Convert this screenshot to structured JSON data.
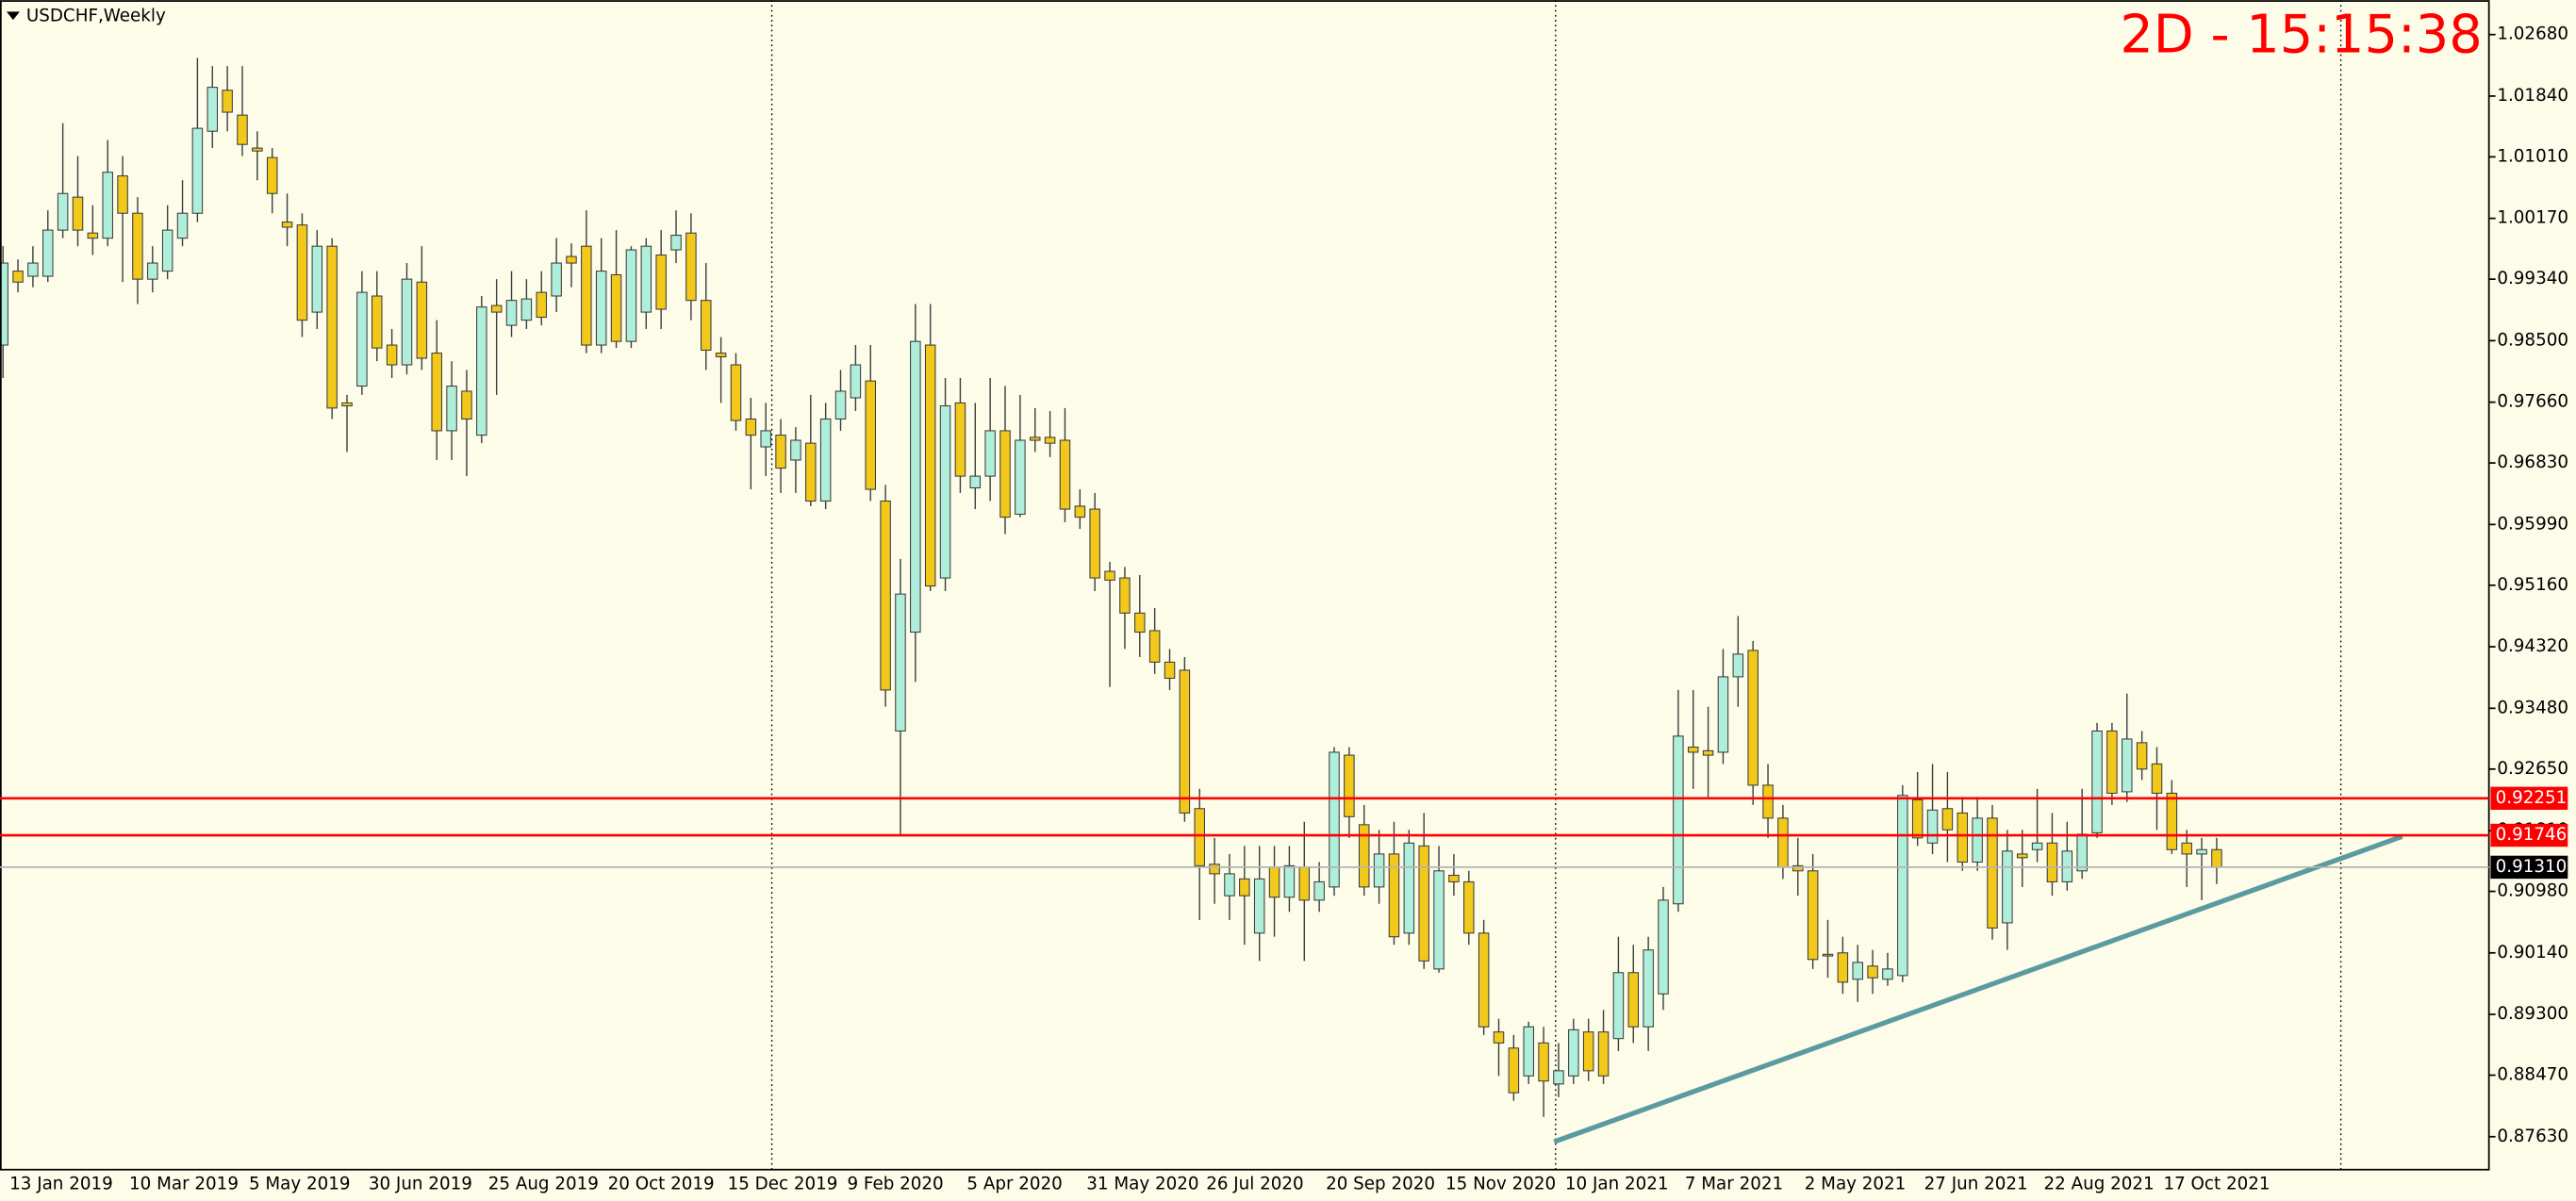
{
  "chart_data": {
    "type": "candlestick",
    "title": "USDCHF,Weekly",
    "timer": "2D - 15:15:38",
    "categories": [
      "13 Jan 2019",
      null,
      null,
      null,
      null,
      null,
      null,
      null,
      "10 Mar 2019",
      null,
      null,
      null,
      null,
      null,
      null,
      null,
      "5 May 2019",
      null,
      null,
      null,
      null,
      null,
      null,
      null,
      "30 Jun 2019",
      null,
      null,
      null,
      null,
      null,
      null,
      null,
      "25 Aug 2019",
      null,
      null,
      null,
      null,
      null,
      null,
      null,
      "20 Oct 2019",
      null,
      null,
      null,
      null,
      null,
      null,
      null,
      "15 Dec 2019",
      null,
      null,
      null,
      null,
      null,
      null,
      null,
      "9 Feb 2020",
      null,
      null,
      null,
      null,
      null,
      null,
      null,
      "5 Apr 2020",
      null,
      null,
      null,
      null,
      null,
      null,
      null,
      "31 May 2020",
      null,
      null,
      null,
      null,
      null,
      null,
      null,
      "26 Jul 2020",
      null,
      null,
      null,
      null,
      null,
      null,
      null,
      "20 Sep 2020",
      null,
      null,
      null,
      null,
      null,
      null,
      null,
      "15 Nov 2020",
      null,
      null,
      null,
      null,
      null,
      null,
      null,
      "10 Jan 2021",
      null,
      null,
      null,
      null,
      null,
      null,
      null,
      "7 Mar 2021",
      null,
      null,
      null,
      null,
      null,
      null,
      null,
      "2 May 2021",
      null,
      null,
      null,
      null,
      null,
      null,
      null,
      "27 Jun 2021",
      null,
      null,
      null,
      null,
      null,
      null,
      null,
      "22 Aug 2021",
      null,
      null,
      null,
      null,
      null,
      null,
      null,
      "17 Oct 2021",
      null,
      null,
      null,
      null
    ],
    "open": [
      0.9844,
      0.9945,
      0.9938,
      0.9938,
      1.0001,
      1.0046,
      0.9997,
      0.999,
      1.0075,
      1.0024,
      0.9934,
      0.9945,
      0.999,
      1.0024,
      1.0136,
      1.0192,
      1.0158,
      1.0113,
      1.01,
      1.0012,
      1.0008,
      0.9889,
      0.9979,
      0.9765,
      0.9788,
      0.9911,
      0.9844,
      0.9817,
      0.993,
      0.9833,
      0.9727,
      0.9781,
      0.9721,
      0.9898,
      0.9871,
      0.9878,
      0.9916,
      0.9911,
      0.9965,
      0.9979,
      0.9844,
      0.994,
      0.9849,
      0.9889,
      0.9967,
      0.9974,
      0.9997,
      0.9905,
      0.9833,
      0.9817,
      0.9743,
      0.9705,
      0.9721,
      0.9687,
      0.971,
      0.9631,
      0.9743,
      0.9772,
      0.9795,
      0.9631,
      0.9317,
      0.9452,
      0.9844,
      0.9526,
      0.9765,
      0.9649,
      0.9665,
      0.9727,
      0.9613,
      0.9718,
      0.9718,
      0.9714,
      0.9624,
      0.962,
      0.9535,
      0.9526,
      0.9478,
      0.9454,
      0.9411,
      0.94,
      0.9211,
      0.9135,
      0.9092,
      0.9115,
      0.9041,
      0.9131,
      0.909,
      0.9131,
      0.9086,
      0.9104,
      0.9284,
      0.9189,
      0.9104,
      0.9149,
      0.9041,
      0.916,
      0.8992,
      0.912,
      0.9111,
      0.9041,
      0.8906,
      0.8884,
      0.8846,
      0.8891,
      0.8835,
      0.8846,
      0.8906,
      0.8906,
      0.8897,
      0.8987,
      0.8913,
      0.8958,
      0.9081,
      0.9295,
      0.929,
      0.9288,
      0.9391,
      0.9427,
      0.9243,
      0.9198,
      0.9133,
      0.9126,
      0.9012,
      0.9014,
      0.8978,
      0.8996,
      0.8978,
      0.8983,
      0.9223,
      0.9164,
      0.9211,
      0.9205,
      0.9138,
      0.9198,
      0.9055,
      0.9149,
      0.9155,
      0.9164,
      0.9111,
      0.9126,
      0.9178,
      0.9317,
      0.9234,
      0.9301,
      0.9272,
      0.9232,
      0.9164,
      0.9149,
      0.9155
    ],
    "high": [
      0.9979,
      0.9961,
      0.9979,
      1.0028,
      1.0147,
      1.0102,
      1.0035,
      1.0124,
      1.0102,
      1.0046,
      0.9979,
      1.0035,
      1.0069,
      1.0236,
      1.0225,
      1.0225,
      1.0225,
      1.0136,
      1.0113,
      1.0051,
      1.0024,
      1.0001,
      0.999,
      0.9776,
      0.9945,
      0.9945,
      0.9866,
      0.9956,
      0.9979,
      0.9878,
      0.9822,
      0.981,
      0.9911,
      0.9934,
      0.9945,
      0.9934,
      0.9945,
      0.999,
      0.9983,
      1.0028,
      0.999,
      1.0001,
      0.9979,
      0.999,
      1.0001,
      1.0028,
      1.0024,
      0.9956,
      0.9855,
      0.9833,
      0.9772,
      0.9765,
      0.9743,
      0.9732,
      0.9776,
      0.9765,
      0.981,
      0.9844,
      0.9844,
      0.9653,
      0.9552,
      0.99,
      0.99,
      0.9799,
      0.9799,
      0.9765,
      0.9799,
      0.9788,
      0.9776,
      0.9758,
      0.9754,
      0.9758,
      0.9647,
      0.9642,
      0.9548,
      0.9541,
      0.953,
      0.9485,
      0.9429,
      0.9418,
      0.9238,
      0.9171,
      0.9149,
      0.916,
      0.916,
      0.916,
      0.916,
      0.9193,
      0.9138,
      0.9295,
      0.9295,
      0.9216,
      0.9182,
      0.9193,
      0.9182,
      0.9205,
      0.916,
      0.9149,
      0.9126,
      0.9059,
      0.8924,
      0.8902,
      0.892,
      0.8913,
      0.8891,
      0.8924,
      0.8924,
      0.8936,
      0.9036,
      0.9025,
      0.9036,
      0.9104,
      0.9373,
      0.9373,
      0.935,
      0.9429,
      0.9474,
      0.944,
      0.9272,
      0.9216,
      0.9171,
      0.9149,
      0.9059,
      0.9036,
      0.9025,
      0.9018,
      0.9014,
      0.9243,
      0.9261,
      0.9272,
      0.9261,
      0.9227,
      0.9227,
      0.9216,
      0.9182,
      0.9182,
      0.9238,
      0.9205,
      0.9193,
      0.9238,
      0.9328,
      0.9328,
      0.9368,
      0.9317,
      0.9295,
      0.925,
      0.9182,
      0.9171,
      0.9171
    ],
    "low": [
      0.9799,
      0.9916,
      0.9923,
      0.993,
      0.999,
      0.9979,
      0.9967,
      0.9979,
      0.993,
      0.99,
      0.9916,
      0.9934,
      0.9979,
      1.0012,
      1.0113,
      1.0136,
      1.0102,
      1.0069,
      1.0024,
      0.9979,
      0.9855,
      0.9866,
      0.9743,
      0.9698,
      0.9776,
      0.9822,
      0.9799,
      0.9804,
      0.981,
      0.9687,
      0.9687,
      0.9665,
      0.971,
      0.9776,
      0.9855,
      0.9866,
      0.9871,
      0.9889,
      0.9923,
      0.9833,
      0.9833,
      0.984,
      0.984,
      0.9866,
      0.9866,
      0.9956,
      0.9878,
      0.981,
      0.9765,
      0.9727,
      0.9647,
      0.9665,
      0.9642,
      0.9642,
      0.9624,
      0.962,
      0.9727,
      0.9754,
      0.9631,
      0.935,
      0.9175,
      0.9384,
      0.9508,
      0.9508,
      0.9642,
      0.962,
      0.9631,
      0.9586,
      0.9609,
      0.9698,
      0.9691,
      0.9602,
      0.9593,
      0.9508,
      0.9377,
      0.9429,
      0.9418,
      0.9395,
      0.9373,
      0.9193,
      0.9059,
      0.9081,
      0.9059,
      0.9025,
      0.9003,
      0.9036,
      0.907,
      0.9003,
      0.907,
      0.9092,
      0.9171,
      0.9092,
      0.9081,
      0.9025,
      0.9025,
      0.8992,
      0.8987,
      0.9092,
      0.9025,
      0.8902,
      0.8846,
      0.8812,
      0.8835,
      0.879,
      0.8817,
      0.8835,
      0.8839,
      0.8835,
      0.888,
      0.8891,
      0.888,
      0.8936,
      0.907,
      0.9238,
      0.9227,
      0.9272,
      0.935,
      0.9216,
      0.9171,
      0.9115,
      0.9092,
      0.8992,
      0.898,
      0.8958,
      0.8947,
      0.8958,
      0.8969,
      0.8974,
      0.916,
      0.9149,
      0.9138,
      0.9126,
      0.9126,
      0.9032,
      0.9018,
      0.9104,
      0.9138,
      0.9092,
      0.9099,
      0.9115,
      0.9171,
      0.9216,
      0.922,
      0.925,
      0.9182,
      0.9149,
      0.9104,
      0.9086,
      0.9108
    ],
    "close": [
      0.9956,
      0.993,
      0.9956,
      1.0001,
      1.0051,
      1.0001,
      0.999,
      1.008,
      1.0024,
      0.9934,
      0.9956,
      1.0001,
      1.0024,
      1.014,
      1.0196,
      1.0162,
      1.0118,
      1.0109,
      1.0051,
      1.0005,
      0.9878,
      0.9979,
      0.9758,
      0.9761,
      0.9916,
      0.984,
      0.9817,
      0.9934,
      0.9826,
      0.9727,
      0.9788,
      0.9743,
      0.9896,
      0.9889,
      0.9905,
      0.9907,
      0.9882,
      0.9956,
      0.9956,
      0.9844,
      0.9945,
      0.9849,
      0.9974,
      0.9979,
      0.9893,
      0.9994,
      0.9905,
      0.9837,
      0.9828,
      0.9741,
      0.9721,
      0.9727,
      0.9676,
      0.9714,
      0.9631,
      0.9743,
      0.9781,
      0.9817,
      0.9647,
      0.9373,
      0.9504,
      0.9849,
      0.9515,
      0.9761,
      0.9665,
      0.9665,
      0.9727,
      0.9609,
      0.9714,
      0.9714,
      0.971,
      0.962,
      0.9609,
      0.9526,
      0.9523,
      0.9478,
      0.9452,
      0.9411,
      0.9389,
      0.9205,
      0.9133,
      0.9122,
      0.9122,
      0.9092,
      0.9115,
      0.909,
      0.9133,
      0.9086,
      0.9111,
      0.9288,
      0.92,
      0.9104,
      0.9149,
      0.9036,
      0.9164,
      0.9003,
      0.9126,
      0.9111,
      0.9041,
      0.8913,
      0.8891,
      0.8823,
      0.8913,
      0.8839,
      0.8853,
      0.8909,
      0.8853,
      0.8846,
      0.8987,
      0.8913,
      0.9018,
      0.9086,
      0.931,
      0.9288,
      0.9284,
      0.9391,
      0.9422,
      0.9243,
      0.9198,
      0.9131,
      0.9126,
      0.9005,
      0.901,
      0.8974,
      0.9001,
      0.898,
      0.8992,
      0.9229,
      0.9171,
      0.9209,
      0.9182,
      0.9138,
      0.9198,
      0.9048,
      0.9153,
      0.9144,
      0.9164,
      0.9111,
      0.9153,
      0.9176,
      0.9317,
      0.9232,
      0.9306,
      0.9265,
      0.9232,
      0.9155,
      0.9149,
      0.9155,
      0.9131
    ],
    "up_color": "#aeeedb",
    "down_color": "#f2c81a",
    "xlim": [
      -0.2,
      166.2
    ],
    "ylim": [
      0.8718,
      1.0315
    ],
    "yticks": [
      {
        "value": 1.0268,
        "label": "1.02680"
      },
      {
        "value": 1.0184,
        "label": "1.01840"
      },
      {
        "value": 1.0101,
        "label": "1.01010"
      },
      {
        "value": 1.0017,
        "label": "1.00170"
      },
      {
        "value": 0.9934,
        "label": "0.99340"
      },
      {
        "value": 0.985,
        "label": "0.98500"
      },
      {
        "value": 0.9766,
        "label": "0.97660"
      },
      {
        "value": 0.9683,
        "label": "0.96830"
      },
      {
        "value": 0.9599,
        "label": "0.95990"
      },
      {
        "value": 0.9516,
        "label": "0.95160"
      },
      {
        "value": 0.9432,
        "label": "0.94320"
      },
      {
        "value": 0.9348,
        "label": "0.93480"
      },
      {
        "value": 0.9265,
        "label": "0.92650"
      },
      {
        "value": 0.9181,
        "label": "0.91810"
      },
      {
        "value": 0.9098,
        "label": "0.90980"
      },
      {
        "value": 0.9014,
        "label": "0.90140"
      },
      {
        "value": 0.893,
        "label": "0.89300"
      },
      {
        "value": 0.8847,
        "label": "0.88470"
      },
      {
        "value": 0.8763,
        "label": "0.87630"
      }
    ],
    "levels": [
      {
        "value": 0.92251,
        "label": "0.92251",
        "line_color": "#ff0000",
        "box_color": "#ff0000"
      },
      {
        "value": 0.91746,
        "label": "0.91746",
        "line_color": "#ff0000",
        "box_color": "#ff0000"
      },
      {
        "value": 0.9131,
        "label": "0.91310",
        "line_color": "#b4b4b4",
        "box_color": "#000000"
      }
    ],
    "trendline": {
      "x": [
        103.7,
        160.4
      ],
      "y": [
        0.8756,
        0.9173
      ],
      "color": "#5b9aa0"
    },
    "period_separators": [
      51.4,
      103.8,
      156.3
    ]
  }
}
